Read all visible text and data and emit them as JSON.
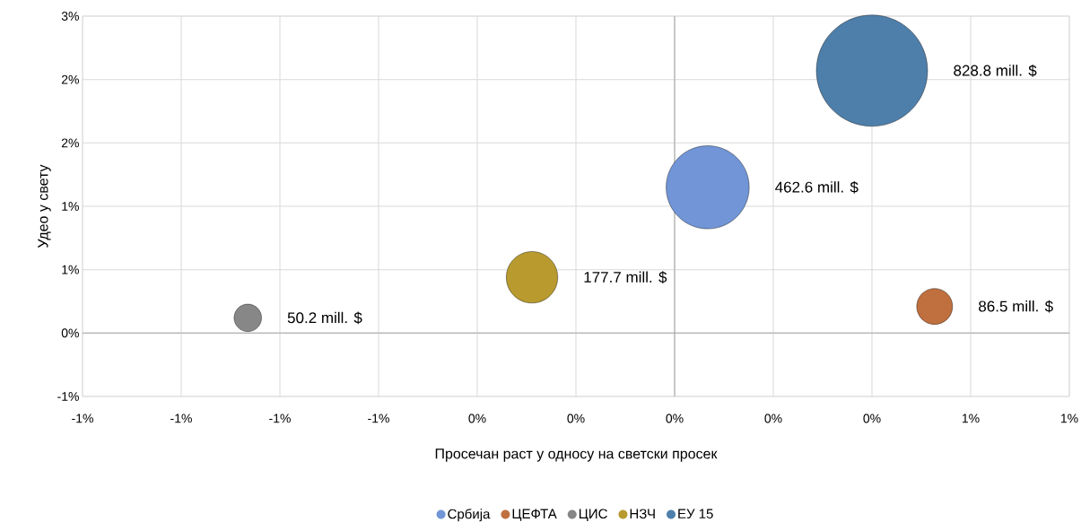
{
  "chart_data": {
    "type": "bubble",
    "xlabel": "Просечан раст у односу на светски просек",
    "ylabel": "Удео у свету",
    "xlim": [
      -1.2,
      0.8
    ],
    "xticks": [
      {
        "value": -1.2,
        "label": "-1%"
      },
      {
        "value": -1.0,
        "label": "-1%"
      },
      {
        "value": -0.8,
        "label": "-1%"
      },
      {
        "value": -0.6,
        "label": "-1%"
      },
      {
        "value": -0.4,
        "label": "0%"
      },
      {
        "value": -0.2,
        "label": "0%"
      },
      {
        "value": 0,
        "label": "0%"
      },
      {
        "value": 0.2,
        "label": "0%"
      },
      {
        "value": 0.4,
        "label": "0%"
      },
      {
        "value": 0.6,
        "label": "1%"
      },
      {
        "value": 0.8,
        "label": "1%"
      }
    ],
    "ylim": [
      -0.5,
      2.5
    ],
    "yticks": [
      {
        "value": -0.5,
        "label": "-1%"
      },
      {
        "value": 0,
        "label": "0%"
      },
      {
        "value": 0.5,
        "label": "1%"
      },
      {
        "value": 1.0,
        "label": "1%"
      },
      {
        "value": 1.5,
        "label": "2%"
      },
      {
        "value": 2.0,
        "label": "2%"
      },
      {
        "value": 2.5,
        "label": "3%"
      }
    ],
    "grid": true,
    "legend": "bottom",
    "series": [
      {
        "name": "Србија",
        "color": "#7195d6",
        "x": [
          0.067
        ],
        "values": [
          1.15
        ],
        "sizes": [
          0.558
        ]
      },
      {
        "name": "ЦЕФТА",
        "color": "#c0703f",
        "x": [
          0.527
        ],
        "values": [
          0.21
        ],
        "sizes": [
          0.104
        ]
      },
      {
        "name": "ЦИС",
        "color": "#878787",
        "x": [
          -0.865
        ],
        "values": [
          0.12
        ],
        "sizes": [
          0.061
        ]
      },
      {
        "name": "НЗЧ",
        "color": "#b89a2f",
        "x": [
          -0.289
        ],
        "values": [
          0.44
        ],
        "sizes": [
          0.214
        ]
      },
      {
        "name": "ЕУ 15",
        "color": "#4e7fab",
        "x": [
          0.4
        ],
        "values": [
          2.07
        ],
        "sizes": [
          1.0
        ]
      }
    ],
    "annotations": [
      "462.6 mill. $",
      "86.5 mill. $",
      "50.2 mill. $",
      "177.7 mill. $",
      "828.8 mill. $"
    ]
  }
}
